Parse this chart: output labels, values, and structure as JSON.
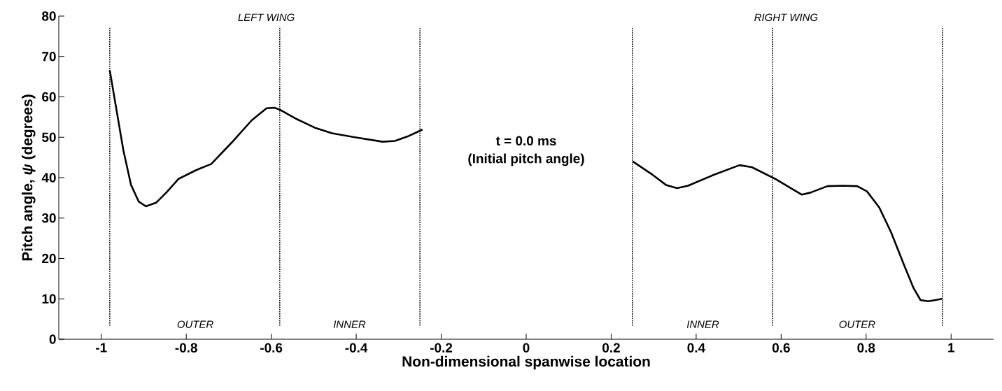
{
  "chart_data": {
    "type": "line",
    "title": "t = 0.0 ms",
    "subtitle": "(Initial pitch angle)",
    "xlabel": "Non-dimensional spanwise location",
    "ylabel": "Pitch angle, *ψ* (degrees)",
    "series": [
      {
        "color": "#000000",
        "x": [
          -0.98,
          -0.966,
          -0.948,
          -0.93,
          -0.912,
          -0.895,
          -0.871,
          -0.847,
          -0.818,
          -0.776,
          -0.741,
          -0.693,
          -0.646,
          -0.611,
          -0.593,
          -0.581,
          -0.54,
          -0.498,
          -0.457,
          -0.398,
          -0.338,
          -0.309,
          -0.279,
          -0.244
        ],
        "values": [
          66.6,
          57.9,
          46.8,
          38.2,
          34.1,
          32.9,
          33.8,
          36.3,
          39.7,
          41.9,
          43.4,
          48.7,
          54.2,
          57.2,
          57.3,
          56.9,
          54.5,
          52.4,
          51.0,
          49.9,
          48.9,
          49.1,
          50.2,
          51.9
        ]
      },
      {
        "color": "#000000",
        "x": [
          0.251,
          0.295,
          0.329,
          0.355,
          0.381,
          0.439,
          0.502,
          0.531,
          0.586,
          0.623,
          0.649,
          0.669,
          0.709,
          0.744,
          0.779,
          0.802,
          0.831,
          0.859,
          0.888,
          0.911,
          0.928,
          0.946,
          0.979
        ],
        "values": [
          44.0,
          40.9,
          38.2,
          37.4,
          38.0,
          40.6,
          43.1,
          42.6,
          39.7,
          37.4,
          35.8,
          36.3,
          37.9,
          38.0,
          37.9,
          36.6,
          32.6,
          26.4,
          18.7,
          12.8,
          9.7,
          9.4,
          10.0
        ]
      }
    ],
    "xlim": [
      -1.1,
      1.1
    ],
    "ylim": [
      0,
      80
    ],
    "xticks": [
      -1,
      -0.8,
      -0.6,
      -0.4,
      -0.2,
      0,
      0.2,
      0.4,
      0.6,
      0.8,
      1
    ],
    "yticks": [
      0,
      10,
      20,
      30,
      40,
      50,
      60,
      70,
      80
    ],
    "ref_lines": [
      {
        "axis": "x",
        "value": -0.98,
        "line_style": "dotted"
      },
      {
        "axis": "x",
        "value": -0.58,
        "line_style": "dotted"
      },
      {
        "axis": "x",
        "value": -0.25,
        "line_style": "dotted"
      },
      {
        "axis": "x",
        "value": 0.25,
        "line_style": "dotted"
      },
      {
        "axis": "x",
        "value": 0.58,
        "line_style": "dotted"
      },
      {
        "axis": "x",
        "value": 0.98,
        "line_style": "dotted"
      }
    ],
    "annotations": [
      "LEFT WING",
      "RIGHT WING",
      "OUTER",
      "INNER",
      "INNER",
      "OUTER"
    ],
    "grid": false,
    "marker": "none",
    "line_style": "solid"
  }
}
